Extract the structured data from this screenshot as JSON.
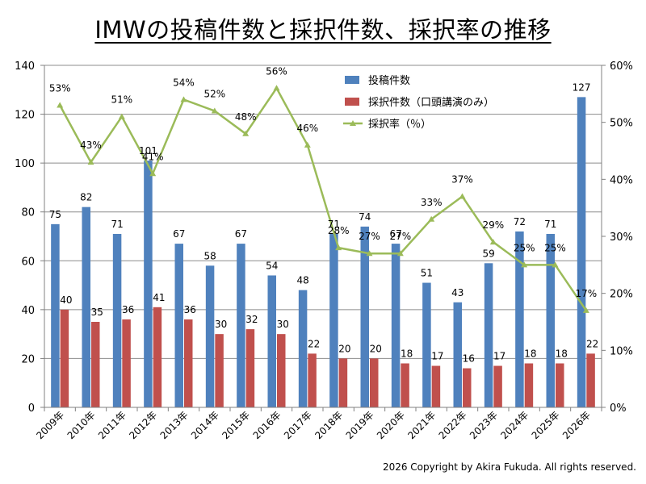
{
  "chart_data": {
    "type": "bar",
    "title": "IMWの投稿件数と採択件数、採択率の推移",
    "categories": [
      "2009年",
      "2010年",
      "2011年",
      "2012年",
      "2013年",
      "2014年",
      "2015年",
      "2016年",
      "2017年",
      "2018年",
      "2019年",
      "2020年",
      "2021年",
      "2022年",
      "2023年",
      "2024年",
      "2025年",
      "2026年"
    ],
    "series": [
      {
        "name": "投稿件数",
        "kind": "bar",
        "axis": "left",
        "color": "#4F81BD",
        "values": [
          75,
          82,
          71,
          101,
          67,
          58,
          67,
          54,
          48,
          71,
          74,
          67,
          51,
          43,
          59,
          72,
          71,
          127
        ]
      },
      {
        "name": "採択件数（口頭講演のみ）",
        "kind": "bar",
        "axis": "left",
        "color": "#C0504D",
        "values": [
          40,
          35,
          36,
          41,
          36,
          30,
          32,
          30,
          22,
          20,
          20,
          18,
          17,
          16,
          17,
          18,
          18,
          22
        ]
      },
      {
        "name": "採択率（％）",
        "kind": "line",
        "axis": "right",
        "color": "#9BBB59",
        "values": [
          53,
          43,
          51,
          41,
          54,
          52,
          48,
          56,
          46,
          28,
          27,
          27,
          33,
          37,
          29,
          25,
          25,
          17
        ]
      }
    ],
    "ylim": [
      0,
      140
    ],
    "yticks": [
      "0",
      "20",
      "40",
      "60",
      "80",
      "100",
      "120",
      "140"
    ],
    "y2lim": [
      0,
      60
    ],
    "y2ticks": [
      "0%",
      "10%",
      "20%",
      "30%",
      "40%",
      "50%",
      "60%"
    ],
    "grid": true,
    "legend": "top-right"
  },
  "footer": {
    "copyright": "2026 Copyright by Akira Fukuda. All rights reserved."
  }
}
